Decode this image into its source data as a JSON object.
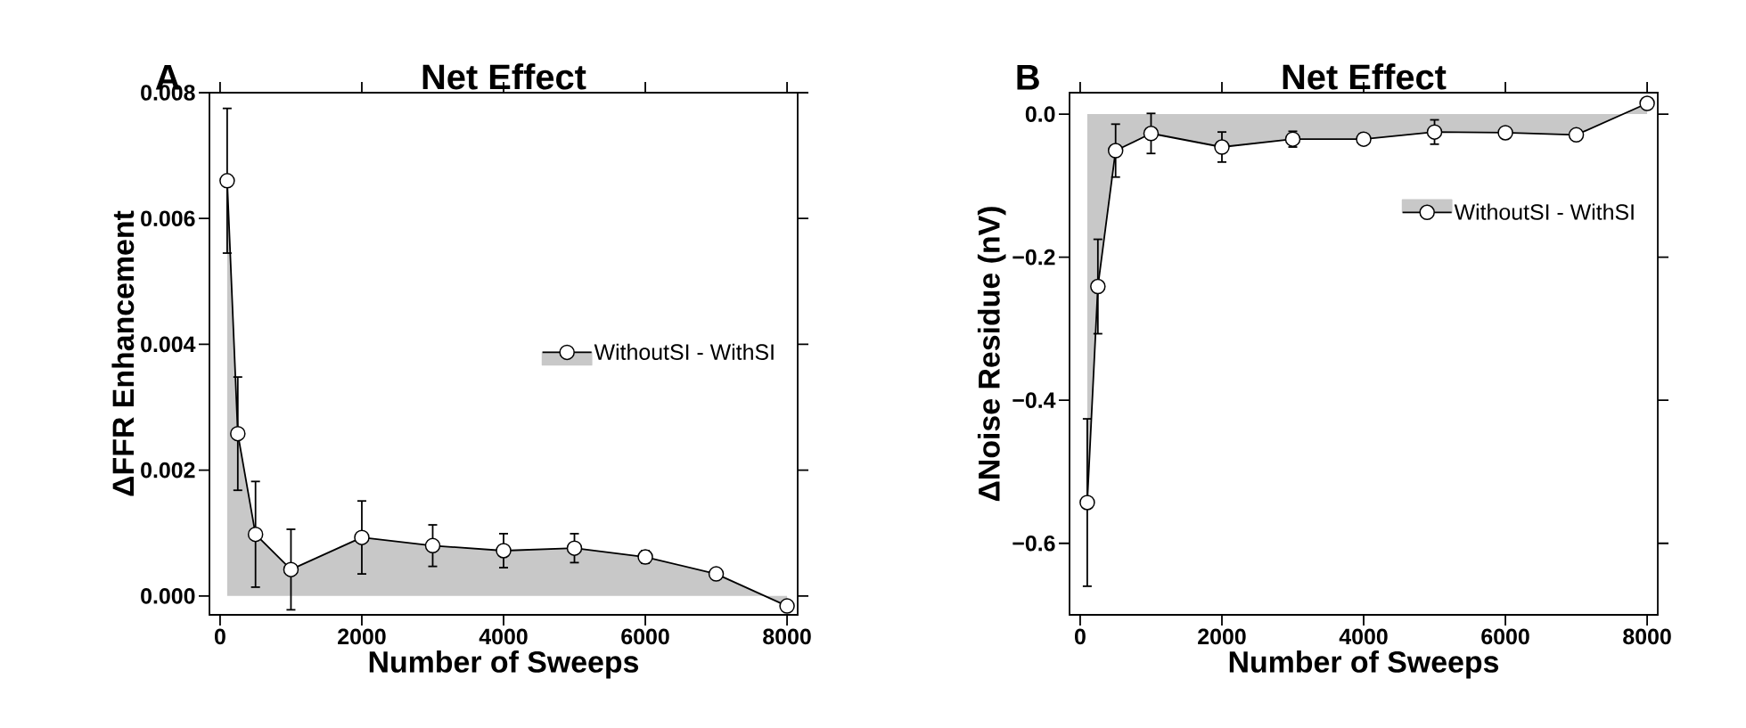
{
  "chart_data": [
    {
      "type": "area",
      "title": "Net Effect",
      "xlabel": "Number of Sweeps",
      "ylabel": "ΔFFR Enhancement",
      "annotations": [
        "A"
      ],
      "x": [
        100,
        250,
        500,
        1000,
        2000,
        3000,
        4000,
        5000,
        6000,
        7000,
        8000
      ],
      "series": [
        {
          "name": "WithoutSI - WithSI",
          "color": "#c8c8c8",
          "values": [
            0.0066,
            0.00258,
            0.00098,
            0.00042,
            0.00093,
            0.0008,
            0.00072,
            0.00076,
            0.00062,
            0.00035,
            -0.00016
          ],
          "errors": [
            0.00115,
            0.0009,
            0.00084,
            0.00064,
            0.00058,
            0.00033,
            0.00027,
            0.00023,
            0.0001,
            null,
            null
          ]
        }
      ],
      "xlim": [
        -150,
        8150
      ],
      "ylim": [
        -0.0003,
        0.008
      ],
      "xticks": [
        0,
        2000,
        4000,
        6000,
        8000
      ],
      "yticks": [
        {
          "value": 0,
          "label": "0.000"
        },
        {
          "value": 0.002,
          "label": "0.002"
        },
        {
          "value": 0.004,
          "label": "0.004"
        },
        {
          "value": 0.006,
          "label": "0.006"
        },
        {
          "value": 0.008,
          "label": "0.008"
        }
      ],
      "marker": "circle",
      "legend": "right",
      "grid": false
    },
    {
      "type": "area",
      "title": "Net Effect",
      "xlabel": "Number of Sweeps",
      "ylabel": "ΔNoise Residue (nV)",
      "annotations": [
        "B"
      ],
      "x": [
        100,
        250,
        500,
        1000,
        2000,
        3000,
        4000,
        5000,
        6000,
        7000,
        8000
      ],
      "series": [
        {
          "name": "WithoutSI - WithSI",
          "color": "#c8c8c8",
          "values": [
            -0.543,
            -0.241,
            -0.051,
            -0.027,
            -0.046,
            -0.035,
            -0.035,
            -0.025,
            -0.026,
            -0.029,
            0.015
          ],
          "errors": [
            0.117,
            0.066,
            0.037,
            0.028,
            0.021,
            0.011,
            0.007,
            0.017,
            null,
            null,
            null
          ]
        }
      ],
      "xlim": [
        -150,
        8150
      ],
      "ylim": [
        -0.7,
        0.03
      ],
      "xticks": [
        0,
        2000,
        4000,
        6000,
        8000
      ],
      "yticks": [
        {
          "value": -0.6,
          "label": "−0.6"
        },
        {
          "value": -0.4,
          "label": "−0.4"
        },
        {
          "value": -0.2,
          "label": "−0.2"
        },
        {
          "value": 0,
          "label": "0.0"
        }
      ],
      "marker": "circle",
      "legend": "top right",
      "grid": false
    }
  ]
}
